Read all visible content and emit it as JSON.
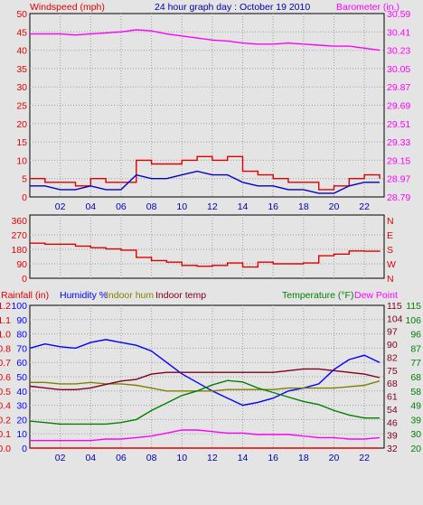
{
  "header": {
    "windspeed_label": "Windspeed (mph)",
    "title": "24 hour graph day : October 19 2010",
    "barometer_label": "Barometer (in.)"
  },
  "colors": {
    "windspeed": "#e00000",
    "wind_avg": "#0000cc",
    "barometer": "#ff00ff",
    "wind_dir": "#e00000",
    "rainfall": "#e00000",
    "humidity": "#0000ff",
    "indoor_hum": "#808000",
    "indoor_temp": "#800020",
    "temperature": "#008000",
    "dew_point": "#ff00ff",
    "gridline": "#a0a0a0"
  },
  "x_ticks": [
    "02",
    "04",
    "06",
    "08",
    "10",
    "12",
    "14",
    "16",
    "18",
    "20",
    "22"
  ],
  "x_tick_hours": [
    2,
    4,
    6,
    8,
    10,
    12,
    14,
    16,
    18,
    20,
    22
  ],
  "chart_data": [
    {
      "type": "line",
      "title": "24 hour graph day : October 19 2010",
      "x": [
        0,
        1,
        2,
        3,
        4,
        5,
        6,
        7,
        8,
        9,
        10,
        11,
        12,
        13,
        14,
        15,
        16,
        17,
        18,
        19,
        20,
        21,
        22,
        23
      ],
      "xlim": [
        0,
        23.3
      ],
      "left_axis": {
        "label": "Windspeed (mph)",
        "ylim": [
          0,
          50
        ],
        "ticks": [
          "0",
          "5",
          "10",
          "15",
          "20",
          "25",
          "30",
          "35",
          "40",
          "45",
          "50"
        ]
      },
      "right_axis": {
        "label": "Barometer (in.)",
        "ylim": [
          28.79,
          30.59
        ],
        "ticks": [
          "28.79",
          "28.97",
          "29.15",
          "29.33",
          "29.51",
          "29.69",
          "29.87",
          "30.05",
          "30.23",
          "30.41",
          "30.59"
        ]
      },
      "series": [
        {
          "key": "windspeed",
          "axis": "left",
          "step": true,
          "values": [
            5,
            4,
            4,
            3,
            5,
            4,
            4,
            10,
            9,
            9,
            10,
            11,
            10,
            11,
            7,
            6,
            5,
            4,
            4,
            2,
            3,
            5,
            6,
            5
          ]
        },
        {
          "key": "wind_avg",
          "axis": "left",
          "values": [
            3,
            3,
            2,
            2,
            3,
            2,
            2,
            6,
            5,
            5,
            6,
            7,
            6,
            6,
            4,
            3,
            3,
            2,
            2,
            1,
            1,
            3,
            4,
            4
          ]
        },
        {
          "key": "barometer",
          "axis": "right",
          "values": [
            30.39,
            30.39,
            30.39,
            30.38,
            30.39,
            30.4,
            30.41,
            30.43,
            30.42,
            30.39,
            30.37,
            30.35,
            30.33,
            30.32,
            30.3,
            30.29,
            30.29,
            30.3,
            30.29,
            30.28,
            30.27,
            30.27,
            30.25,
            30.23
          ]
        }
      ]
    },
    {
      "type": "line",
      "x": [
        0,
        1,
        2,
        3,
        4,
        5,
        6,
        7,
        8,
        9,
        10,
        11,
        12,
        13,
        14,
        15,
        16,
        17,
        18,
        19,
        20,
        21,
        22,
        23
      ],
      "xlim": [
        0,
        23.3
      ],
      "left_axis": {
        "ylim": [
          0,
          360
        ],
        "ticks": [
          "0",
          "90",
          "180",
          "270",
          "360"
        ]
      },
      "right_axis": {
        "ticks": [
          "N",
          "W",
          "S",
          "E",
          "N"
        ]
      },
      "series": [
        {
          "key": "wind_dir",
          "axis": "left",
          "step": true,
          "values": [
            218,
            212,
            212,
            200,
            190,
            182,
            175,
            130,
            110,
            100,
            80,
            75,
            80,
            95,
            70,
            100,
            90,
            90,
            95,
            140,
            150,
            170,
            168,
            165
          ]
        }
      ]
    },
    {
      "type": "line",
      "x": [
        0,
        1,
        2,
        3,
        4,
        5,
        6,
        7,
        8,
        9,
        10,
        11,
        12,
        13,
        14,
        15,
        16,
        17,
        18,
        19,
        20,
        21,
        22,
        23
      ],
      "xlim": [
        0,
        23.3
      ],
      "legend_left": [
        "Rainfall (in)",
        "Humidity %",
        "Indoor hum",
        "Indoor temp"
      ],
      "legend_right": [
        "Temperature (°F)",
        "Dew Point"
      ],
      "left_axes": {
        "rainfall": {
          "ylim": [
            0,
            1.2
          ],
          "ticks": [
            "0.0",
            "0.1",
            "0.2",
            "0.4",
            "0.5",
            "0.6",
            "0.7",
            "0.8",
            "1.0",
            "1.1",
            "1.2"
          ]
        },
        "humidity": {
          "ylim": [
            0,
            100
          ],
          "ticks": [
            "0",
            "10",
            "20",
            "30",
            "40",
            "50",
            "60",
            "70",
            "80",
            "90",
            "100"
          ]
        }
      },
      "right_axes": {
        "indoor": {
          "ylim": [
            32,
            115
          ],
          "ticks": [
            "32",
            "39",
            "46",
            "54",
            "61",
            "68",
            "75",
            "82",
            "90",
            "97",
            "104",
            "115"
          ]
        },
        "temperature": {
          "ylim": [
            20,
            115
          ],
          "ticks": [
            "20",
            "30",
            "39",
            "49",
            "58",
            "68",
            "77",
            "87",
            "96",
            "106",
            "115"
          ]
        }
      },
      "series": [
        {
          "key": "rainfall",
          "axis": "rainfall",
          "values": [
            0,
            0,
            0,
            0,
            0,
            0,
            0,
            0,
            0,
            0,
            0,
            0,
            0,
            0,
            0,
            0,
            0,
            0,
            0,
            0,
            0,
            0,
            0,
            0
          ]
        },
        {
          "key": "humidity",
          "axis": "humidity",
          "values": [
            70,
            73,
            71,
            70,
            74,
            76,
            74,
            72,
            68,
            60,
            52,
            46,
            40,
            35,
            30,
            32,
            35,
            40,
            42,
            45,
            55,
            62,
            65,
            60
          ]
        },
        {
          "key": "indoor_hum",
          "axis": "humidity",
          "values": [
            46,
            46,
            45,
            45,
            46,
            45,
            45,
            44,
            42,
            40,
            40,
            40,
            40,
            41,
            41,
            41,
            41,
            42,
            42,
            42,
            42,
            43,
            44,
            47
          ]
        },
        {
          "key": "indoor_temp",
          "axis": "indoor",
          "values": [
            68,
            67,
            66,
            66,
            67,
            69,
            71,
            72,
            75,
            76,
            76,
            76,
            76,
            76,
            76,
            76,
            76,
            77,
            78,
            78,
            77,
            76,
            75,
            73
          ]
        },
        {
          "key": "temperature",
          "axis": "temperature",
          "values": [
            38,
            37,
            36,
            36,
            36,
            36,
            37,
            39,
            45,
            50,
            55,
            58,
            62,
            65,
            64,
            60,
            57,
            54,
            51,
            49,
            45,
            42,
            40,
            40
          ]
        },
        {
          "key": "dew_point",
          "axis": "temperature",
          "values": [
            25,
            25,
            25,
            25,
            25,
            26,
            26,
            27,
            28,
            30,
            32,
            32,
            31,
            30,
            30,
            29,
            29,
            29,
            28,
            27,
            27,
            26,
            26,
            27
          ]
        }
      ]
    }
  ]
}
